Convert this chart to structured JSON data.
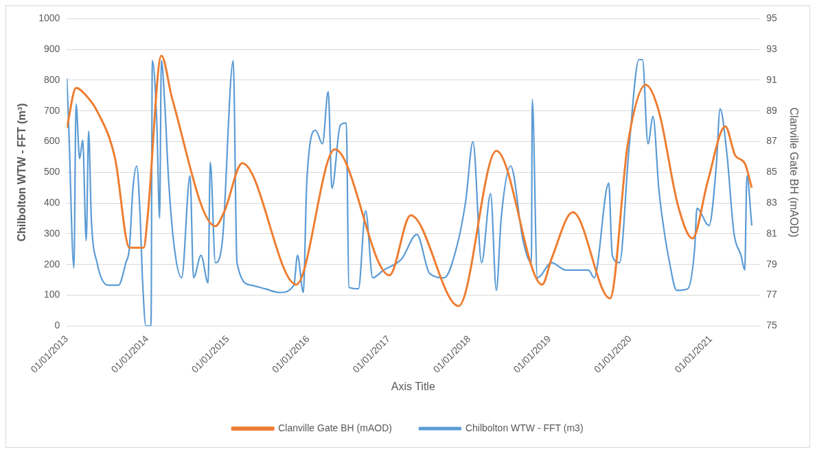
{
  "chart_data": {
    "type": "line",
    "xlabel": "Axis Title",
    "ylabel": "Chilbolton WTW - FFT (m³)",
    "y2label": "Clanville Gate BH (mAOD)",
    "xlim": [
      "2013-01-01",
      "2021-08-10"
    ],
    "xticks": [
      {
        "value": "2013-01-01",
        "label": "01/01/2013"
      },
      {
        "value": "2014-01-01",
        "label": "01/01/2014"
      },
      {
        "value": "2015-01-01",
        "label": "01/01/2015"
      },
      {
        "value": "2016-01-01",
        "label": "01/01/2016"
      },
      {
        "value": "2017-01-01",
        "label": "01/01/2017"
      },
      {
        "value": "2018-01-01",
        "label": "01/01/2018"
      },
      {
        "value": "2019-01-01",
        "label": "01/01/2019"
      },
      {
        "value": "2020-01-01",
        "label": "01/01/2020"
      },
      {
        "value": "2021-01-01",
        "label": "01/01/2021"
      }
    ],
    "ylim": [
      0,
      1000
    ],
    "yticks": [
      0,
      100,
      200,
      300,
      400,
      500,
      600,
      700,
      800,
      900,
      1000
    ],
    "y2lim": [
      75,
      95
    ],
    "y2ticks": [
      75,
      77,
      79,
      81,
      83,
      85,
      87,
      89,
      91,
      93,
      95
    ],
    "grid": "y",
    "legend": "bottom",
    "marker": "none",
    "line_style": "solid",
    "series": [
      {
        "name": "Chilbolton WTW - FFT (m3)",
        "color": "#5b9bd5",
        "x": [
          "2013-01-01",
          "2013-01-10",
          "2013-02-02",
          "2013-02-12",
          "2013-02-28",
          "2013-03-14",
          "2013-03-30",
          "2013-04-10",
          "2013-04-22",
          "2013-05-18",
          "2013-07-06",
          "2013-08-24",
          "2013-09-26",
          "2013-10-12",
          "2013-10-28",
          "2013-11-14",
          "2013-11-30",
          "2013-12-10",
          "2013-12-26",
          "2014-01-18",
          "2014-01-24",
          "2014-02-13",
          "2014-02-26",
          "2014-03-06",
          "2014-03-22",
          "2014-04-08",
          "2014-05-04",
          "2014-06-06",
          "2014-07-14",
          "2014-07-30",
          "2014-09-02",
          "2014-10-04",
          "2014-10-14",
          "2014-11-06",
          "2014-12-08",
          "2015-01-26",
          "2015-02-12",
          "2015-04-16",
          "2015-06-20",
          "2015-08-24",
          "2015-10-28",
          "2015-11-14",
          "2015-12-10",
          "2015-12-26",
          "2016-02-04",
          "2016-03-06",
          "2016-04-01",
          "2016-04-18",
          "2016-05-26",
          "2016-06-22",
          "2016-07-04",
          "2016-08-16",
          "2016-09-18",
          "2016-10-20",
          "2016-12-08",
          "2017-02-28",
          "2017-05-08",
          "2017-07-06",
          "2017-09-10",
          "2017-11-04",
          "2017-12-16",
          "2018-01-18",
          "2018-02-26",
          "2018-04-08",
          "2018-05-04",
          "2018-05-26",
          "2018-07-08",
          "2018-09-02",
          "2018-10-10",
          "2018-10-14",
          "2018-11-06",
          "2019-01-10",
          "2019-03-14",
          "2019-06-26",
          "2019-07-22",
          "2019-09-26",
          "2019-10-12",
          "2019-11-14",
          "2019-12-26",
          "2020-02-10",
          "2020-02-26",
          "2020-03-22",
          "2020-04-14",
          "2020-05-10",
          "2020-05-26",
          "2020-06-28",
          "2020-07-30",
          "2020-09-18",
          "2020-10-20",
          "2020-10-30",
          "2020-12-24",
          "2021-01-26",
          "2021-02-12",
          "2021-03-14",
          "2021-04-16",
          "2021-05-18",
          "2021-06-04",
          "2021-06-14",
          "2021-07-06"
        ],
        "values": [
          806,
          642,
          189,
          722,
          545,
          605,
          278,
          634,
          351,
          206,
          133,
          133,
          206,
          254,
          448,
          521,
          351,
          157,
          0,
          0,
          864,
          666,
          351,
          864,
          714,
          472,
          254,
          157,
          489,
          157,
          230,
          140,
          533,
          206,
          278,
          864,
          206,
          133,
          121,
          109,
          133,
          230,
          109,
          472,
          637,
          593,
          763,
          448,
          654,
          661,
          126,
          121,
          375,
          157,
          182,
          218,
          298,
          170,
          157,
          254,
          407,
          600,
          206,
          431,
          116,
          351,
          521,
          278,
          206,
          738,
          157,
          206,
          182,
          182,
          157,
          465,
          230,
          206,
          569,
          867,
          867,
          593,
          682,
          448,
          351,
          206,
          116,
          121,
          254,
          383,
          327,
          521,
          707,
          569,
          303,
          230,
          182,
          489,
          327
        ]
      },
      {
        "name": "Clanville Gate BH (mAOD)",
        "color": "#ed7d31",
        "axis": "y2",
        "x": [
          "2013-01-01",
          "2013-02-12",
          "2013-03-30",
          "2013-05-18",
          "2013-08-08",
          "2013-10-12",
          "2013-12-16",
          "2014-01-02",
          "2014-03-06",
          "2014-04-24",
          "2014-11-06",
          "2014-12-18",
          "2015-03-08",
          "2015-11-08",
          "2016-05-01",
          "2017-01-04",
          "2017-04-10",
          "2017-11-14",
          "2018-05-04",
          "2018-11-28",
          "2019-01-10",
          "2019-04-16",
          "2019-10-02",
          "2019-12-22",
          "2020-03-12",
          "2020-05-10",
          "2020-08-06",
          "2020-10-10",
          "2020-12-18",
          "2021-03-08",
          "2021-04-22",
          "2021-06-04",
          "2021-07-06"
        ],
        "values": [
          87.9,
          90.5,
          90.0,
          89.0,
          85.9,
          80.1,
          80.1,
          82.0,
          92.6,
          89.8,
          81.5,
          82.5,
          85.6,
          77.7,
          86.5,
          78.3,
          82.2,
          76.3,
          86.4,
          77.7,
          79.4,
          82.4,
          76.8,
          86.9,
          90.7,
          89.0,
          82.8,
          80.7,
          84.4,
          88.0,
          86.1,
          85.6,
          84.0
        ]
      }
    ]
  }
}
